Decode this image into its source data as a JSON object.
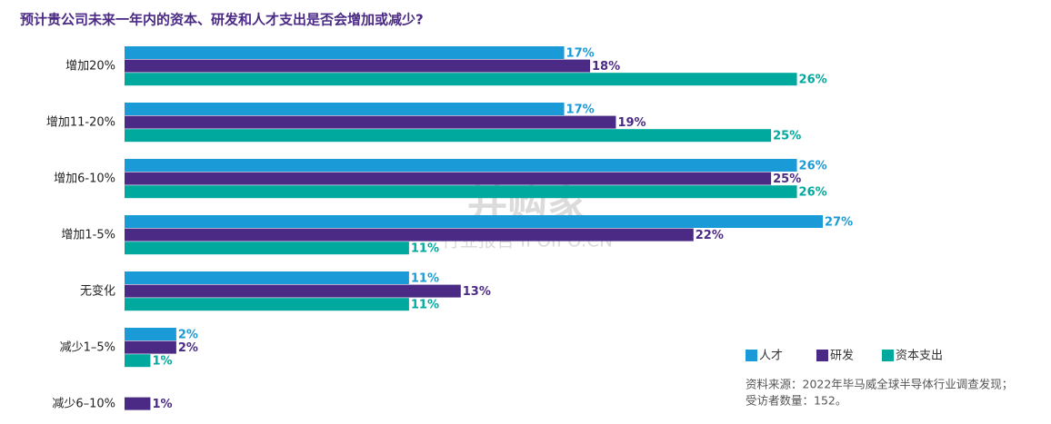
{
  "chart_data": {
    "type": "bar",
    "orientation": "horizontal",
    "title": "预计贵公司未来一年内的资本、研发和人才支出是否会增加或减少?",
    "categories": [
      "增加20%",
      "增加11-20%",
      "增加6-10%",
      "增加1-5%",
      "无变化",
      "减少1–5%",
      "减少6–10%"
    ],
    "series": [
      {
        "name": "人才",
        "color": "#1a9ad6",
        "values": [
          17,
          17,
          26,
          27,
          11,
          2,
          null
        ],
        "value_labels": [
          "17%",
          "17%",
          "26%",
          "27%",
          "11%",
          "2%",
          null
        ]
      },
      {
        "name": "研发",
        "color": "#4b2a86",
        "values": [
          18,
          19,
          25,
          22,
          13,
          2,
          1
        ],
        "value_labels": [
          "18%",
          "19%",
          "25%",
          "22%",
          "13%",
          "2%",
          "1%"
        ]
      },
      {
        "name": "资本支出",
        "color": "#00a99d",
        "values": [
          26,
          25,
          26,
          11,
          11,
          1,
          null
        ],
        "value_labels": [
          "26%",
          "25%",
          "26%",
          "11%",
          "11%",
          "1%",
          null
        ]
      }
    ],
    "legend": "bottom-right",
    "notes": [
      "资料来源：2022年毕马威全球半导体行业调查发现；",
      "受访者数量：152。"
    ],
    "watermark": [
      "并购家",
      "行业报告 IPOIPO.CN"
    ]
  }
}
